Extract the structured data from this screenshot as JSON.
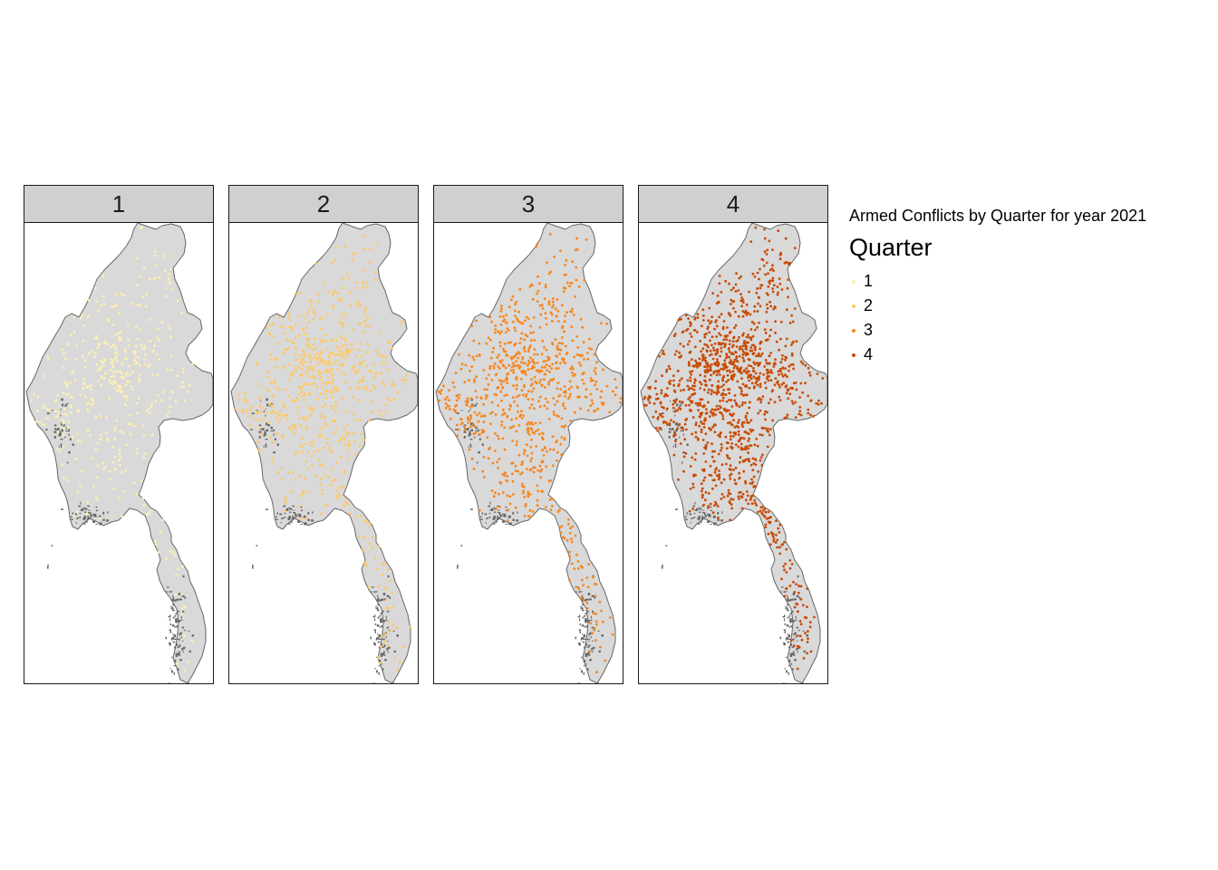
{
  "map": {
    "title": "Armed Conflicts by Quarter for year 2021",
    "legend": {
      "title": "Quarter",
      "items": [
        {
          "label": "1",
          "color": "#ffefb0"
        },
        {
          "label": "2",
          "color": "#fec964"
        },
        {
          "label": "3",
          "color": "#f7871e"
        },
        {
          "label": "4",
          "color": "#c84b05"
        }
      ]
    },
    "panels": [
      {
        "label": "1",
        "color": "#ffefb0",
        "count": 420
      },
      {
        "label": "2",
        "color": "#fec964",
        "count": 650
      },
      {
        "label": "3",
        "color": "#f7871e",
        "count": 820
      },
      {
        "label": "4",
        "color": "#c84b05",
        "count": 1250
      }
    ],
    "land_color": "#d9d9d9",
    "outline_color": "#666666"
  }
}
